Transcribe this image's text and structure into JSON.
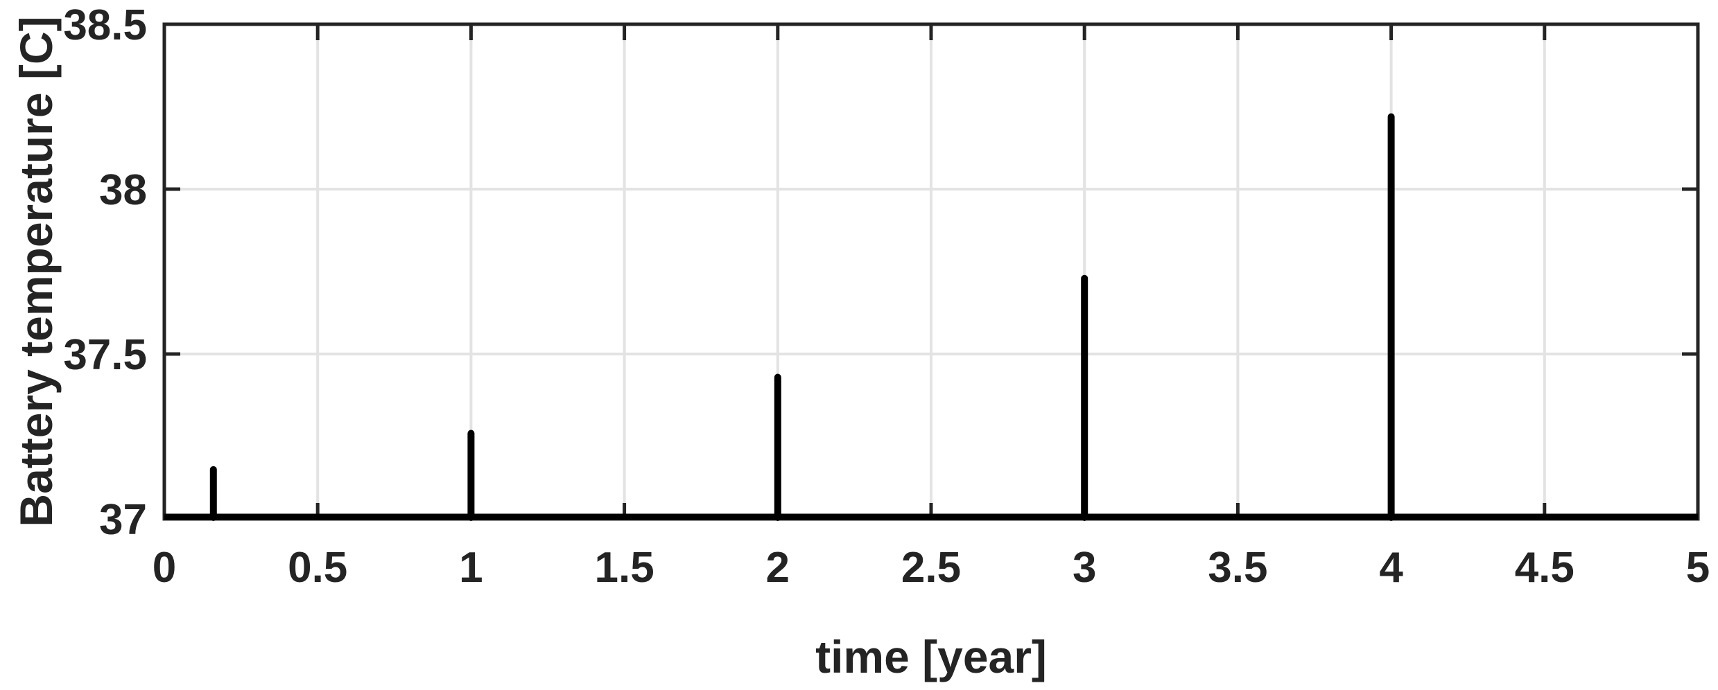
{
  "figure": {
    "background_color": "#ffffff",
    "axis_color": "#242424",
    "grid_color": "#e3e3e3",
    "data_line_color": "#000000"
  },
  "chart_data": {
    "type": "line",
    "title": "",
    "xlabel": "time [year]",
    "ylabel": "Battery temperature [C]",
    "xlim": [
      0,
      5
    ],
    "ylim": [
      37,
      38.5
    ],
    "xticks": [
      0,
      0.5,
      1,
      1.5,
      2,
      2.5,
      3,
      3.5,
      4,
      4.5,
      5
    ],
    "xtick_labels": [
      "0",
      "0.5",
      "1",
      "1.5",
      "2",
      "2.5",
      "3",
      "3.5",
      "4",
      "4.5",
      "5"
    ],
    "yticks": [
      37,
      37.5,
      38,
      38.5
    ],
    "ytick_labels": [
      "37",
      "37.5",
      "38",
      "38.5"
    ],
    "grid": true,
    "legend": null,
    "baseline_value": 37,
    "spikes": [
      {
        "t": 0.16,
        "peak": 37.16
      },
      {
        "t": 1,
        "peak": 37.27
      },
      {
        "t": 2,
        "peak": 37.44
      },
      {
        "t": 3,
        "peak": 37.74
      },
      {
        "t": 4,
        "peak": 38.23
      }
    ]
  }
}
